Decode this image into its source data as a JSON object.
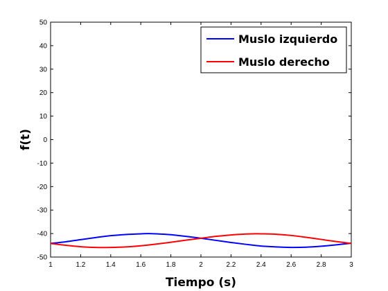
{
  "chart_data": {
    "type": "line",
    "title": "",
    "xlabel": "Tiempo (s)",
    "ylabel": "f(t)",
    "xlim": [
      1,
      3
    ],
    "ylim": [
      -50,
      50
    ],
    "xticks": [
      "1",
      "1.2",
      "1.4",
      "1.6",
      "1.8",
      "2",
      "2.2",
      "2.4",
      "2.6",
      "2.8",
      "3"
    ],
    "yticks": [
      "50",
      "40",
      "30",
      "20",
      "10",
      "0",
      "-10",
      "-20",
      "-30",
      "-40",
      "-50"
    ],
    "grid": false,
    "legend_position": "top-right",
    "series": [
      {
        "name": "Muslo izquierdo",
        "color": "#0000ff",
        "x": [
          1.0,
          1.1,
          1.2,
          1.3,
          1.4,
          1.5,
          1.6,
          1.65,
          1.7,
          1.8,
          1.9,
          2.0,
          2.1,
          2.2,
          2.3,
          2.4,
          2.5,
          2.6,
          2.7,
          2.8,
          2.9,
          3.0
        ],
        "values": [
          -44.2,
          -43.5,
          -42.6,
          -41.7,
          -40.9,
          -40.4,
          -40.1,
          -40.0,
          -40.1,
          -40.5,
          -41.2,
          -42.0,
          -42.9,
          -43.8,
          -44.6,
          -45.3,
          -45.7,
          -45.9,
          -45.8,
          -45.4,
          -44.8,
          -44.1
        ]
      },
      {
        "name": "Muslo derecho",
        "color": "#ff0000",
        "x": [
          1.0,
          1.1,
          1.2,
          1.3,
          1.4,
          1.5,
          1.6,
          1.7,
          1.8,
          1.9,
          2.0,
          2.1,
          2.2,
          2.3,
          2.35,
          2.4,
          2.5,
          2.6,
          2.7,
          2.8,
          2.9,
          3.0
        ],
        "values": [
          -44.2,
          -45.0,
          -45.6,
          -45.9,
          -45.9,
          -45.7,
          -45.2,
          -44.5,
          -43.7,
          -42.8,
          -42.0,
          -41.2,
          -40.6,
          -40.2,
          -40.1,
          -40.1,
          -40.3,
          -40.8,
          -41.6,
          -42.5,
          -43.4,
          -44.2
        ]
      }
    ]
  }
}
